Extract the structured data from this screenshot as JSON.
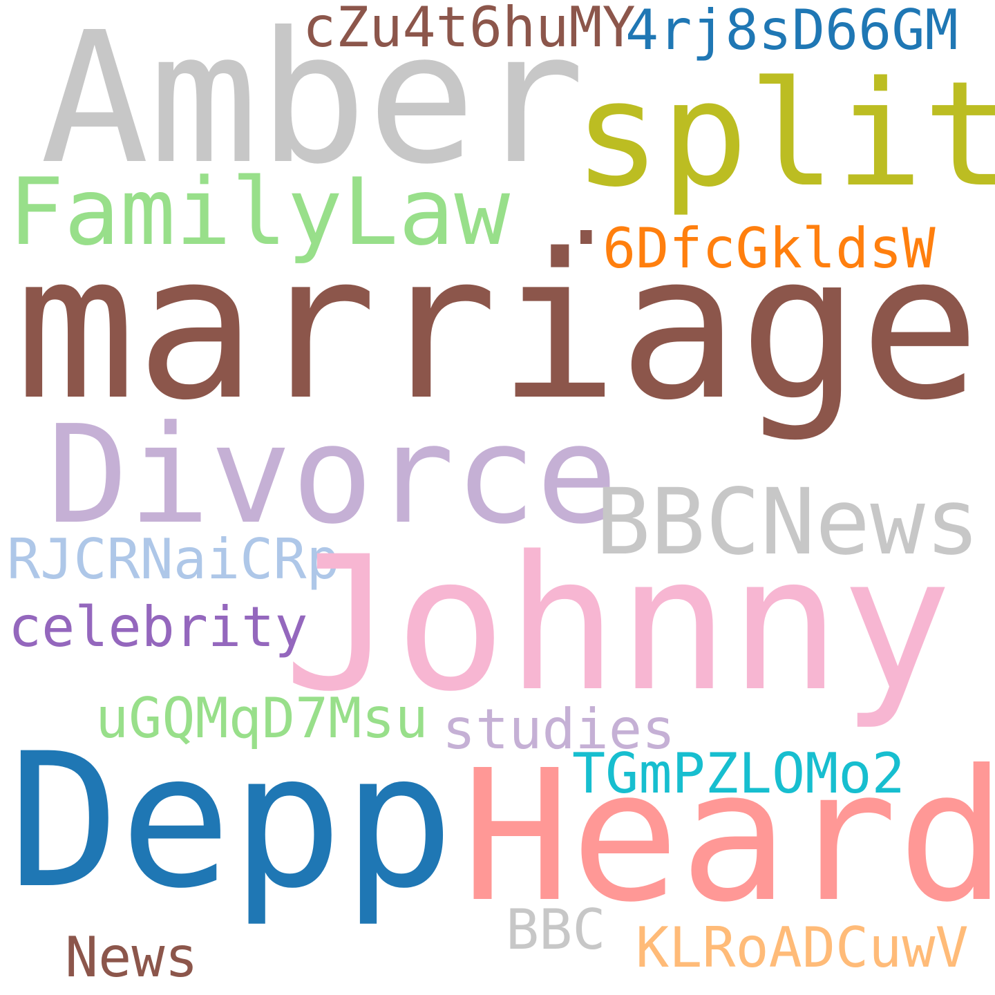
{
  "words": {
    "amber": {
      "text": "Amber",
      "color": "#c7c7c7"
    },
    "cz": {
      "text": "cZu4t6huMY",
      "color": "#8c564b"
    },
    "rj": {
      "text": "4rj8sD66GM",
      "color": "#1f77b4"
    },
    "split": {
      "text": "split",
      "color": "#bcbd22"
    },
    "familylaw": {
      "text": "FamilyLaw",
      "color": "#98df8a"
    },
    "dot": {
      "text": ".",
      "color": "#8c564b"
    },
    "df": {
      "text": "6DfcGkldsW",
      "color": "#ff7f0e"
    },
    "marriage": {
      "text": "marriage",
      "color": "#8c564b"
    },
    "divorce": {
      "text": "Divorce",
      "color": "#c5b0d5"
    },
    "bbcnews": {
      "text": "BBCNews",
      "color": "#c7c7c7"
    },
    "rjcr": {
      "text": "RJCRNaiCRp",
      "color": "#aec7e8"
    },
    "johnny": {
      "text": "Johnny",
      "color": "#f7b6d2"
    },
    "celebrity": {
      "text": "celebrity",
      "color": "#9467bd"
    },
    "ugq": {
      "text": "uGQMqD7Msu",
      "color": "#98df8a"
    },
    "studies": {
      "text": "studies",
      "color": "#c5b0d5"
    },
    "tgm": {
      "text": "TGmPZLOMo2",
      "color": "#17becf"
    },
    "depp": {
      "text": "Depp",
      "color": "#1f77b4"
    },
    "heard": {
      "text": "Heard",
      "color": "#ff9896"
    },
    "bbc": {
      "text": "BBC",
      "color": "#c7c7c7"
    },
    "klro": {
      "text": "KLRoADCuwV",
      "color": "#ffbb78"
    },
    "news": {
      "text": "News",
      "color": "#8c564b"
    }
  }
}
